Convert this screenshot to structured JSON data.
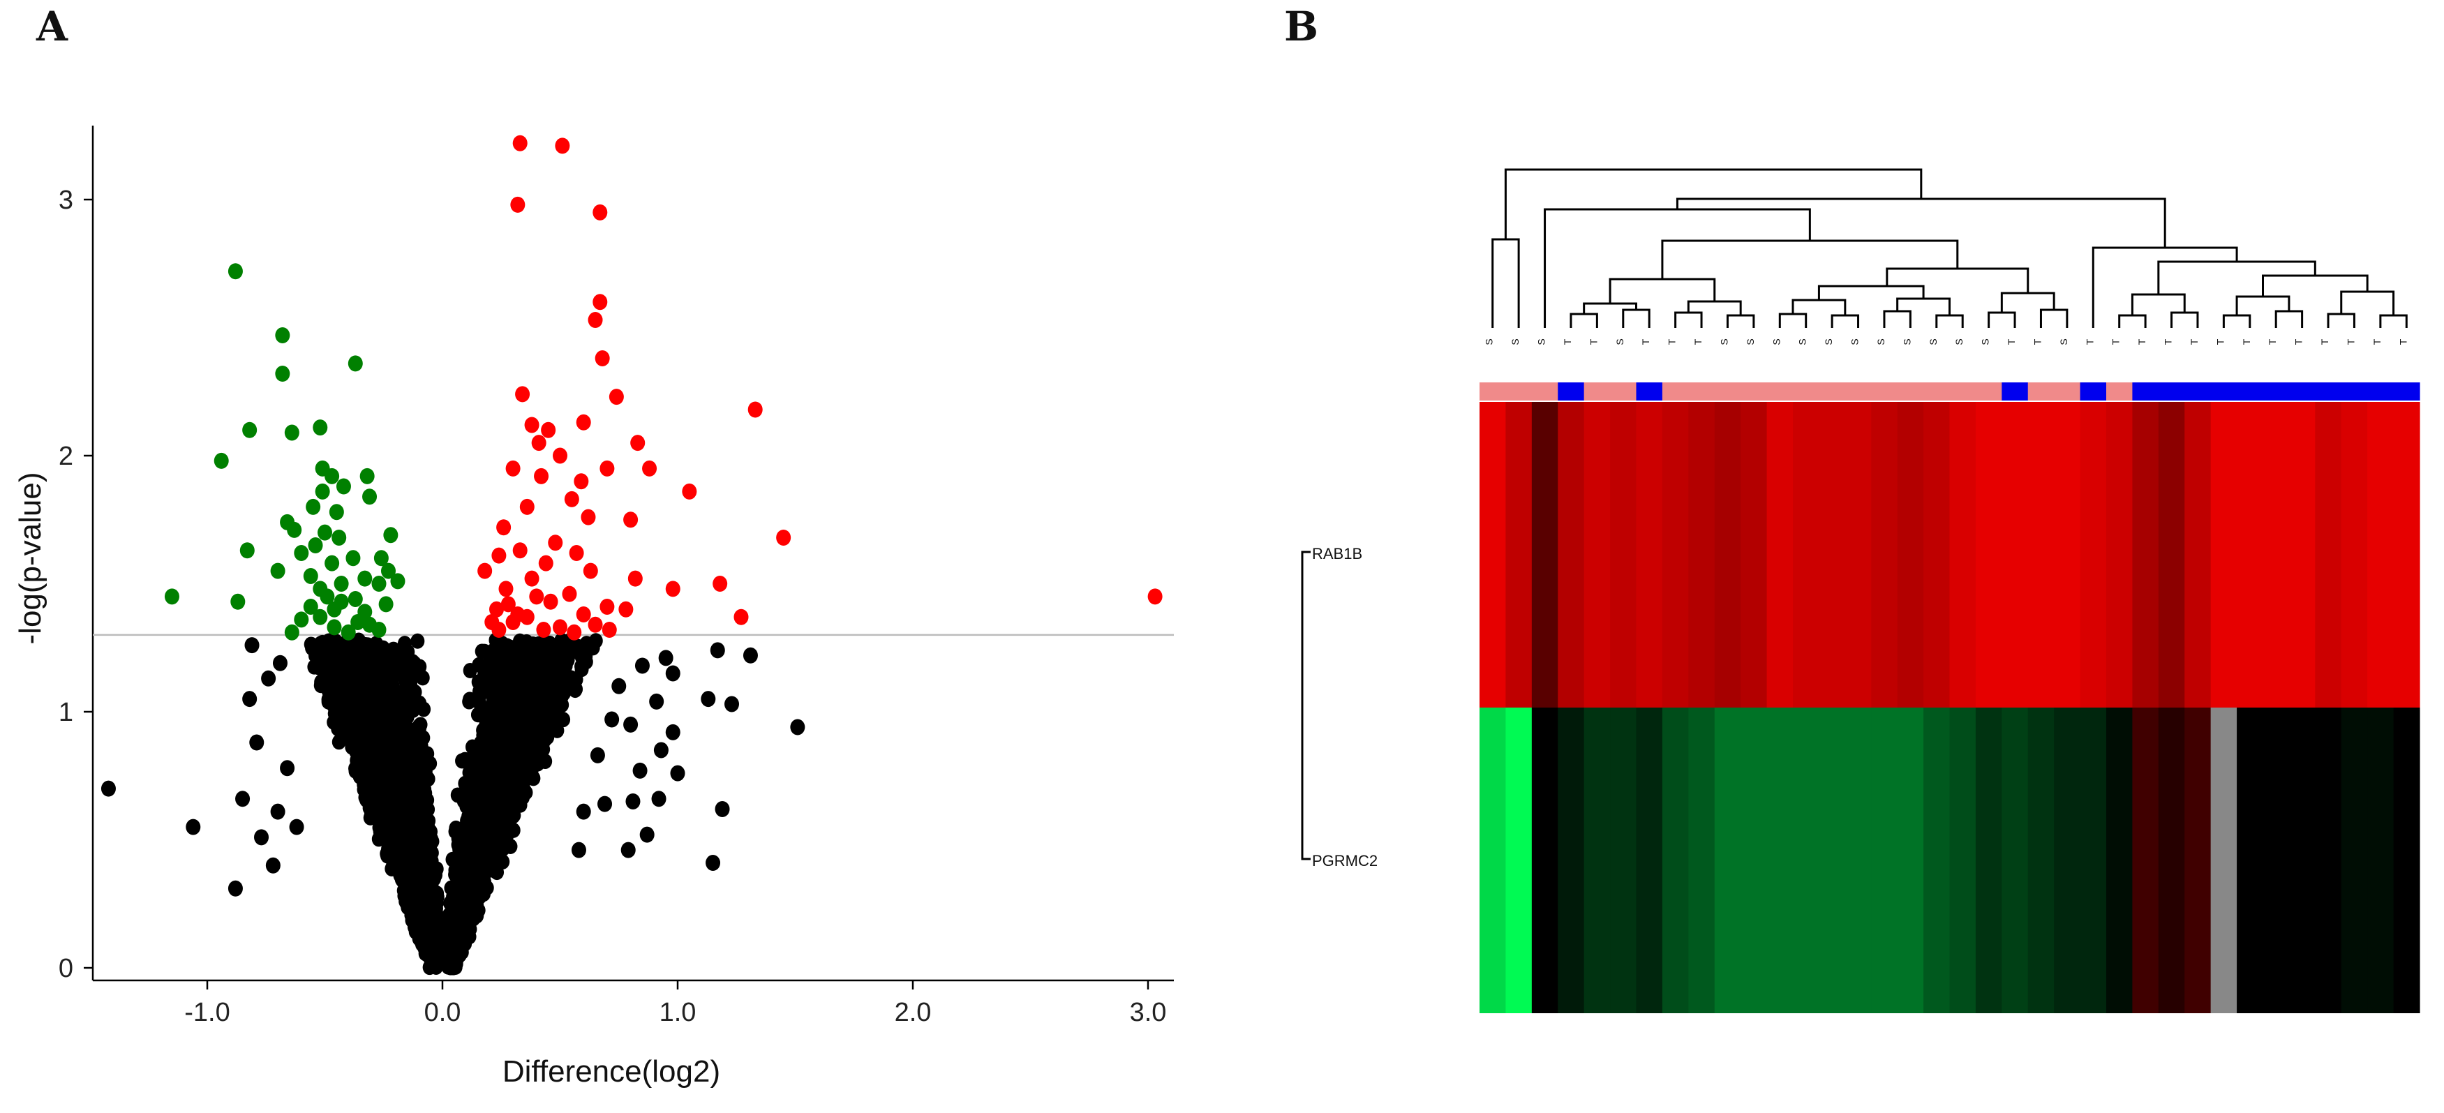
{
  "panel_labels": {
    "a": "A",
    "b": "B"
  },
  "colors": {
    "up": "#ff0000",
    "down": "#008000",
    "ns": "#000000",
    "threshold_line": "#bbbbbb",
    "group_a": "#f08a8a",
    "group_b": "#0000ee",
    "missing": "#888888"
  },
  "chart_data": [
    {
      "type": "scatter",
      "subtype": "volcano",
      "xlabel": "Difference(log2)",
      "ylabel": "-log(p-value)",
      "xlim": [
        -1.5,
        3.1
      ],
      "ylim": [
        -0.05,
        3.3
      ],
      "xticks": [
        -1.0,
        0.0,
        1.0,
        2.0,
        3.0
      ],
      "xtick_labels": [
        "-1.0",
        "0.0",
        "1.0",
        "2.0",
        "3.0"
      ],
      "yticks": [
        0,
        1,
        2,
        3
      ],
      "ytick_labels": [
        "0",
        "1",
        "2",
        "3"
      ],
      "threshold_y": 1.3,
      "series": [
        {
          "name": "up",
          "color": "#ff0000",
          "points": [
            [
              0.33,
              3.22
            ],
            [
              0.51,
              3.21
            ],
            [
              0.32,
              2.98
            ],
            [
              0.67,
              2.95
            ],
            [
              0.67,
              2.6
            ],
            [
              0.65,
              2.53
            ],
            [
              0.68,
              2.38
            ],
            [
              0.74,
              2.23
            ],
            [
              0.34,
              2.24
            ],
            [
              1.33,
              2.18
            ],
            [
              0.6,
              2.13
            ],
            [
              0.45,
              2.1
            ],
            [
              0.38,
              2.12
            ],
            [
              0.41,
              2.05
            ],
            [
              0.83,
              2.05
            ],
            [
              0.5,
              2.0
            ],
            [
              0.7,
              1.95
            ],
            [
              0.88,
              1.95
            ],
            [
              0.3,
              1.95
            ],
            [
              1.05,
              1.86
            ],
            [
              0.42,
              1.92
            ],
            [
              0.59,
              1.9
            ],
            [
              0.55,
              1.83
            ],
            [
              0.36,
              1.8
            ],
            [
              0.62,
              1.76
            ],
            [
              0.8,
              1.75
            ],
            [
              0.26,
              1.72
            ],
            [
              1.45,
              1.68
            ],
            [
              0.48,
              1.66
            ],
            [
              0.57,
              1.62
            ],
            [
              0.33,
              1.63
            ],
            [
              0.24,
              1.61
            ],
            [
              0.44,
              1.58
            ],
            [
              0.63,
              1.55
            ],
            [
              0.18,
              1.55
            ],
            [
              0.38,
              1.52
            ],
            [
              0.82,
              1.52
            ],
            [
              1.18,
              1.5
            ],
            [
              0.98,
              1.48
            ],
            [
              0.27,
              1.48
            ],
            [
              3.03,
              1.45
            ],
            [
              0.54,
              1.46
            ],
            [
              0.46,
              1.43
            ],
            [
              0.7,
              1.41
            ],
            [
              0.78,
              1.4
            ],
            [
              0.23,
              1.4
            ],
            [
              0.6,
              1.38
            ],
            [
              0.36,
              1.37
            ],
            [
              1.27,
              1.37
            ],
            [
              0.3,
              1.35
            ],
            [
              0.65,
              1.34
            ],
            [
              0.5,
              1.33
            ],
            [
              0.43,
              1.32
            ],
            [
              0.24,
              1.32
            ],
            [
              0.21,
              1.35
            ],
            [
              0.56,
              1.31
            ],
            [
              0.32,
              1.38
            ],
            [
              0.4,
              1.45
            ],
            [
              0.28,
              1.42
            ],
            [
              0.71,
              1.32
            ]
          ]
        },
        {
          "name": "down",
          "color": "#008000",
          "points": [
            [
              -0.88,
              2.72
            ],
            [
              -0.68,
              2.47
            ],
            [
              -0.37,
              2.36
            ],
            [
              -0.68,
              2.32
            ],
            [
              -0.52,
              2.11
            ],
            [
              -0.82,
              2.1
            ],
            [
              -0.64,
              2.09
            ],
            [
              -0.94,
              1.98
            ],
            [
              -0.51,
              1.95
            ],
            [
              -0.47,
              1.92
            ],
            [
              -0.32,
              1.92
            ],
            [
              -0.42,
              1.88
            ],
            [
              -0.51,
              1.86
            ],
            [
              -0.31,
              1.84
            ],
            [
              -0.55,
              1.8
            ],
            [
              -0.45,
              1.78
            ],
            [
              -0.66,
              1.74
            ],
            [
              -0.63,
              1.71
            ],
            [
              -0.5,
              1.7
            ],
            [
              -0.22,
              1.69
            ],
            [
              -0.44,
              1.68
            ],
            [
              -0.54,
              1.65
            ],
            [
              -0.83,
              1.63
            ],
            [
              -0.6,
              1.62
            ],
            [
              -0.38,
              1.6
            ],
            [
              -0.26,
              1.6
            ],
            [
              -0.47,
              1.58
            ],
            [
              -0.7,
              1.55
            ],
            [
              -0.23,
              1.55
            ],
            [
              -0.56,
              1.53
            ],
            [
              -0.33,
              1.52
            ],
            [
              -0.19,
              1.51
            ],
            [
              -0.43,
              1.5
            ],
            [
              -0.27,
              1.5
            ],
            [
              -0.52,
              1.48
            ],
            [
              -1.15,
              1.45
            ],
            [
              -0.49,
              1.45
            ],
            [
              -0.37,
              1.44
            ],
            [
              -0.43,
              1.43
            ],
            [
              -0.87,
              1.43
            ],
            [
              -0.24,
              1.42
            ],
            [
              -0.56,
              1.41
            ],
            [
              -0.46,
              1.4
            ],
            [
              -0.33,
              1.39
            ],
            [
              -0.52,
              1.37
            ],
            [
              -0.36,
              1.35
            ],
            [
              -0.31,
              1.34
            ],
            [
              -0.64,
              1.31
            ],
            [
              -0.46,
              1.33
            ],
            [
              -0.27,
              1.32
            ],
            [
              -0.6,
              1.36
            ],
            [
              -0.4,
              1.31
            ]
          ]
        },
        {
          "name": "ns",
          "color": "#000000",
          "note": "approx. 2000+ non-significant points below the threshold; a representative set is rendered",
          "points": [
            [
              -1.42,
              0.7
            ],
            [
              -0.88,
              0.31
            ],
            [
              -0.85,
              0.66
            ],
            [
              -0.77,
              0.51
            ],
            [
              -0.81,
              1.26
            ],
            [
              -0.82,
              1.05
            ],
            [
              -0.79,
              0.88
            ],
            [
              -0.72,
              0.4
            ],
            [
              -0.7,
              0.61
            ],
            [
              -0.66,
              0.78
            ],
            [
              -0.62,
              0.55
            ],
            [
              -0.74,
              1.13
            ],
            [
              -0.69,
              1.19
            ],
            [
              -1.06,
              0.55
            ],
            [
              0.81,
              0.65
            ],
            [
              0.8,
              0.95
            ],
            [
              0.93,
              0.85
            ],
            [
              0.98,
              0.92
            ],
            [
              1.13,
              1.05
            ],
            [
              1.15,
              0.41
            ],
            [
              1.19,
              0.62
            ],
            [
              1.23,
              1.03
            ],
            [
              1.17,
              1.24
            ],
            [
              1.51,
              0.94
            ],
            [
              1.31,
              1.22
            ],
            [
              0.95,
              1.21
            ],
            [
              0.87,
              0.52
            ],
            [
              0.79,
              0.46
            ],
            [
              0.92,
              0.66
            ],
            [
              0.69,
              0.64
            ],
            [
              0.6,
              0.61
            ],
            [
              0.58,
              0.46
            ],
            [
              0.98,
              1.15
            ],
            [
              0.85,
              1.18
            ],
            [
              0.91,
              1.04
            ],
            [
              0.84,
              0.77
            ],
            [
              1.0,
              0.76
            ],
            [
              0.75,
              1.1
            ],
            [
              0.72,
              0.97
            ],
            [
              0.66,
              0.83
            ]
          ]
        }
      ]
    },
    {
      "type": "heatmap",
      "rows": [
        "RAB1B",
        "PGRMC2"
      ],
      "n_columns": 36,
      "column_groups": [
        "A",
        "A",
        "A",
        "B",
        "A",
        "A",
        "B",
        "A",
        "A",
        "A",
        "A",
        "A",
        "A",
        "A",
        "A",
        "A",
        "A",
        "A",
        "A",
        "A",
        "B",
        "A",
        "A",
        "B",
        "A",
        "B",
        "B",
        "B",
        "B",
        "B",
        "B",
        "B",
        "B",
        "B",
        "B",
        "B"
      ],
      "column_labels": [
        "S",
        "S",
        "S",
        "T",
        "T",
        "S",
        "T",
        "T",
        "T",
        "S",
        "S",
        "S",
        "S",
        "S",
        "S",
        "S",
        "S",
        "S",
        "S",
        "S",
        "T",
        "T",
        "S",
        "T",
        "T",
        "T",
        "T",
        "T",
        "T",
        "T",
        "T",
        "T",
        "T",
        "T",
        "T",
        "T"
      ],
      "values_rab1b": [
        0.9,
        0.75,
        0.35,
        0.7,
        0.8,
        0.75,
        0.8,
        0.75,
        0.7,
        0.65,
        0.7,
        0.85,
        0.8,
        0.8,
        0.8,
        0.75,
        0.7,
        0.75,
        0.85,
        0.9,
        0.9,
        0.9,
        0.9,
        0.85,
        0.8,
        0.65,
        0.55,
        0.75,
        0.9,
        0.9,
        0.9,
        0.9,
        0.8,
        0.85,
        0.9,
        0.9
      ],
      "values_pgrmc2": [
        -0.85,
        -0.98,
        0.0,
        -0.1,
        -0.2,
        -0.2,
        -0.15,
        -0.3,
        -0.35,
        -0.45,
        -0.45,
        -0.45,
        -0.45,
        -0.45,
        -0.45,
        -0.45,
        -0.45,
        -0.35,
        -0.3,
        -0.2,
        -0.25,
        -0.2,
        -0.15,
        -0.15,
        -0.05,
        0.25,
        0.15,
        0.25,
        null,
        0.0,
        0.0,
        0.0,
        0.0,
        -0.05,
        -0.05,
        0.0
      ],
      "color_scale": {
        "low": "#00ff55",
        "mid": "#000000",
        "high": "#ff0000"
      }
    }
  ]
}
